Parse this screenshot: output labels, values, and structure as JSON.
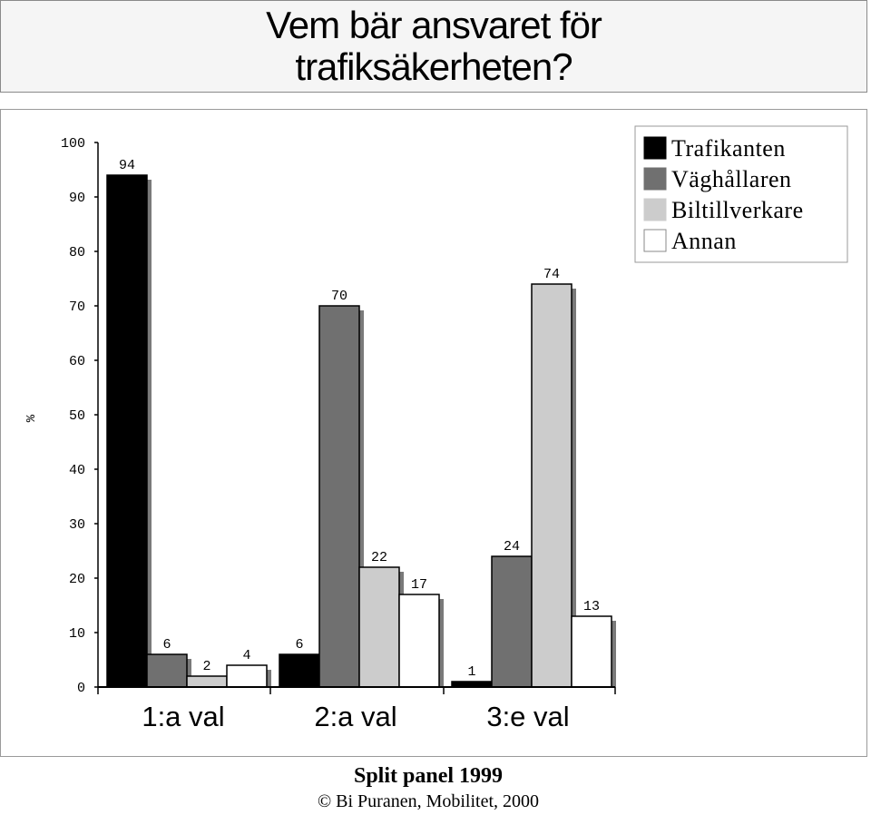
{
  "title_lines": [
    "Vem bär ansvaret för",
    "trafiksäkerheten?"
  ],
  "chart_data": {
    "type": "bar",
    "title": "Vem bär ansvaret för trafiksäkerheten?",
    "ylabel": "%",
    "xlabel": "",
    "ylim": [
      0,
      100
    ],
    "yticks": [
      "0",
      "10",
      "20",
      "30",
      "40",
      "50",
      "60",
      "70",
      "80",
      "90",
      "100"
    ],
    "categories": [
      "1:a val",
      "2:a val",
      "3:e val"
    ],
    "series": [
      {
        "name": "Trafikanten",
        "color": "#000000",
        "values": [
          94,
          6,
          1
        ]
      },
      {
        "name": "Väghållaren",
        "color": "#707070",
        "values": [
          6,
          70,
          24
        ]
      },
      {
        "name": "Biltillverkare",
        "color": "#cccccc",
        "values": [
          2,
          22,
          74
        ]
      },
      {
        "name": "Annan",
        "color": "#ffffff",
        "values": [
          4,
          17,
          13
        ]
      }
    ],
    "legend_position": "top-right",
    "grid": false
  },
  "footer": {
    "line1": "Split panel 1999",
    "line2": "© Bi Puranen, Mobilitet, 2000"
  }
}
